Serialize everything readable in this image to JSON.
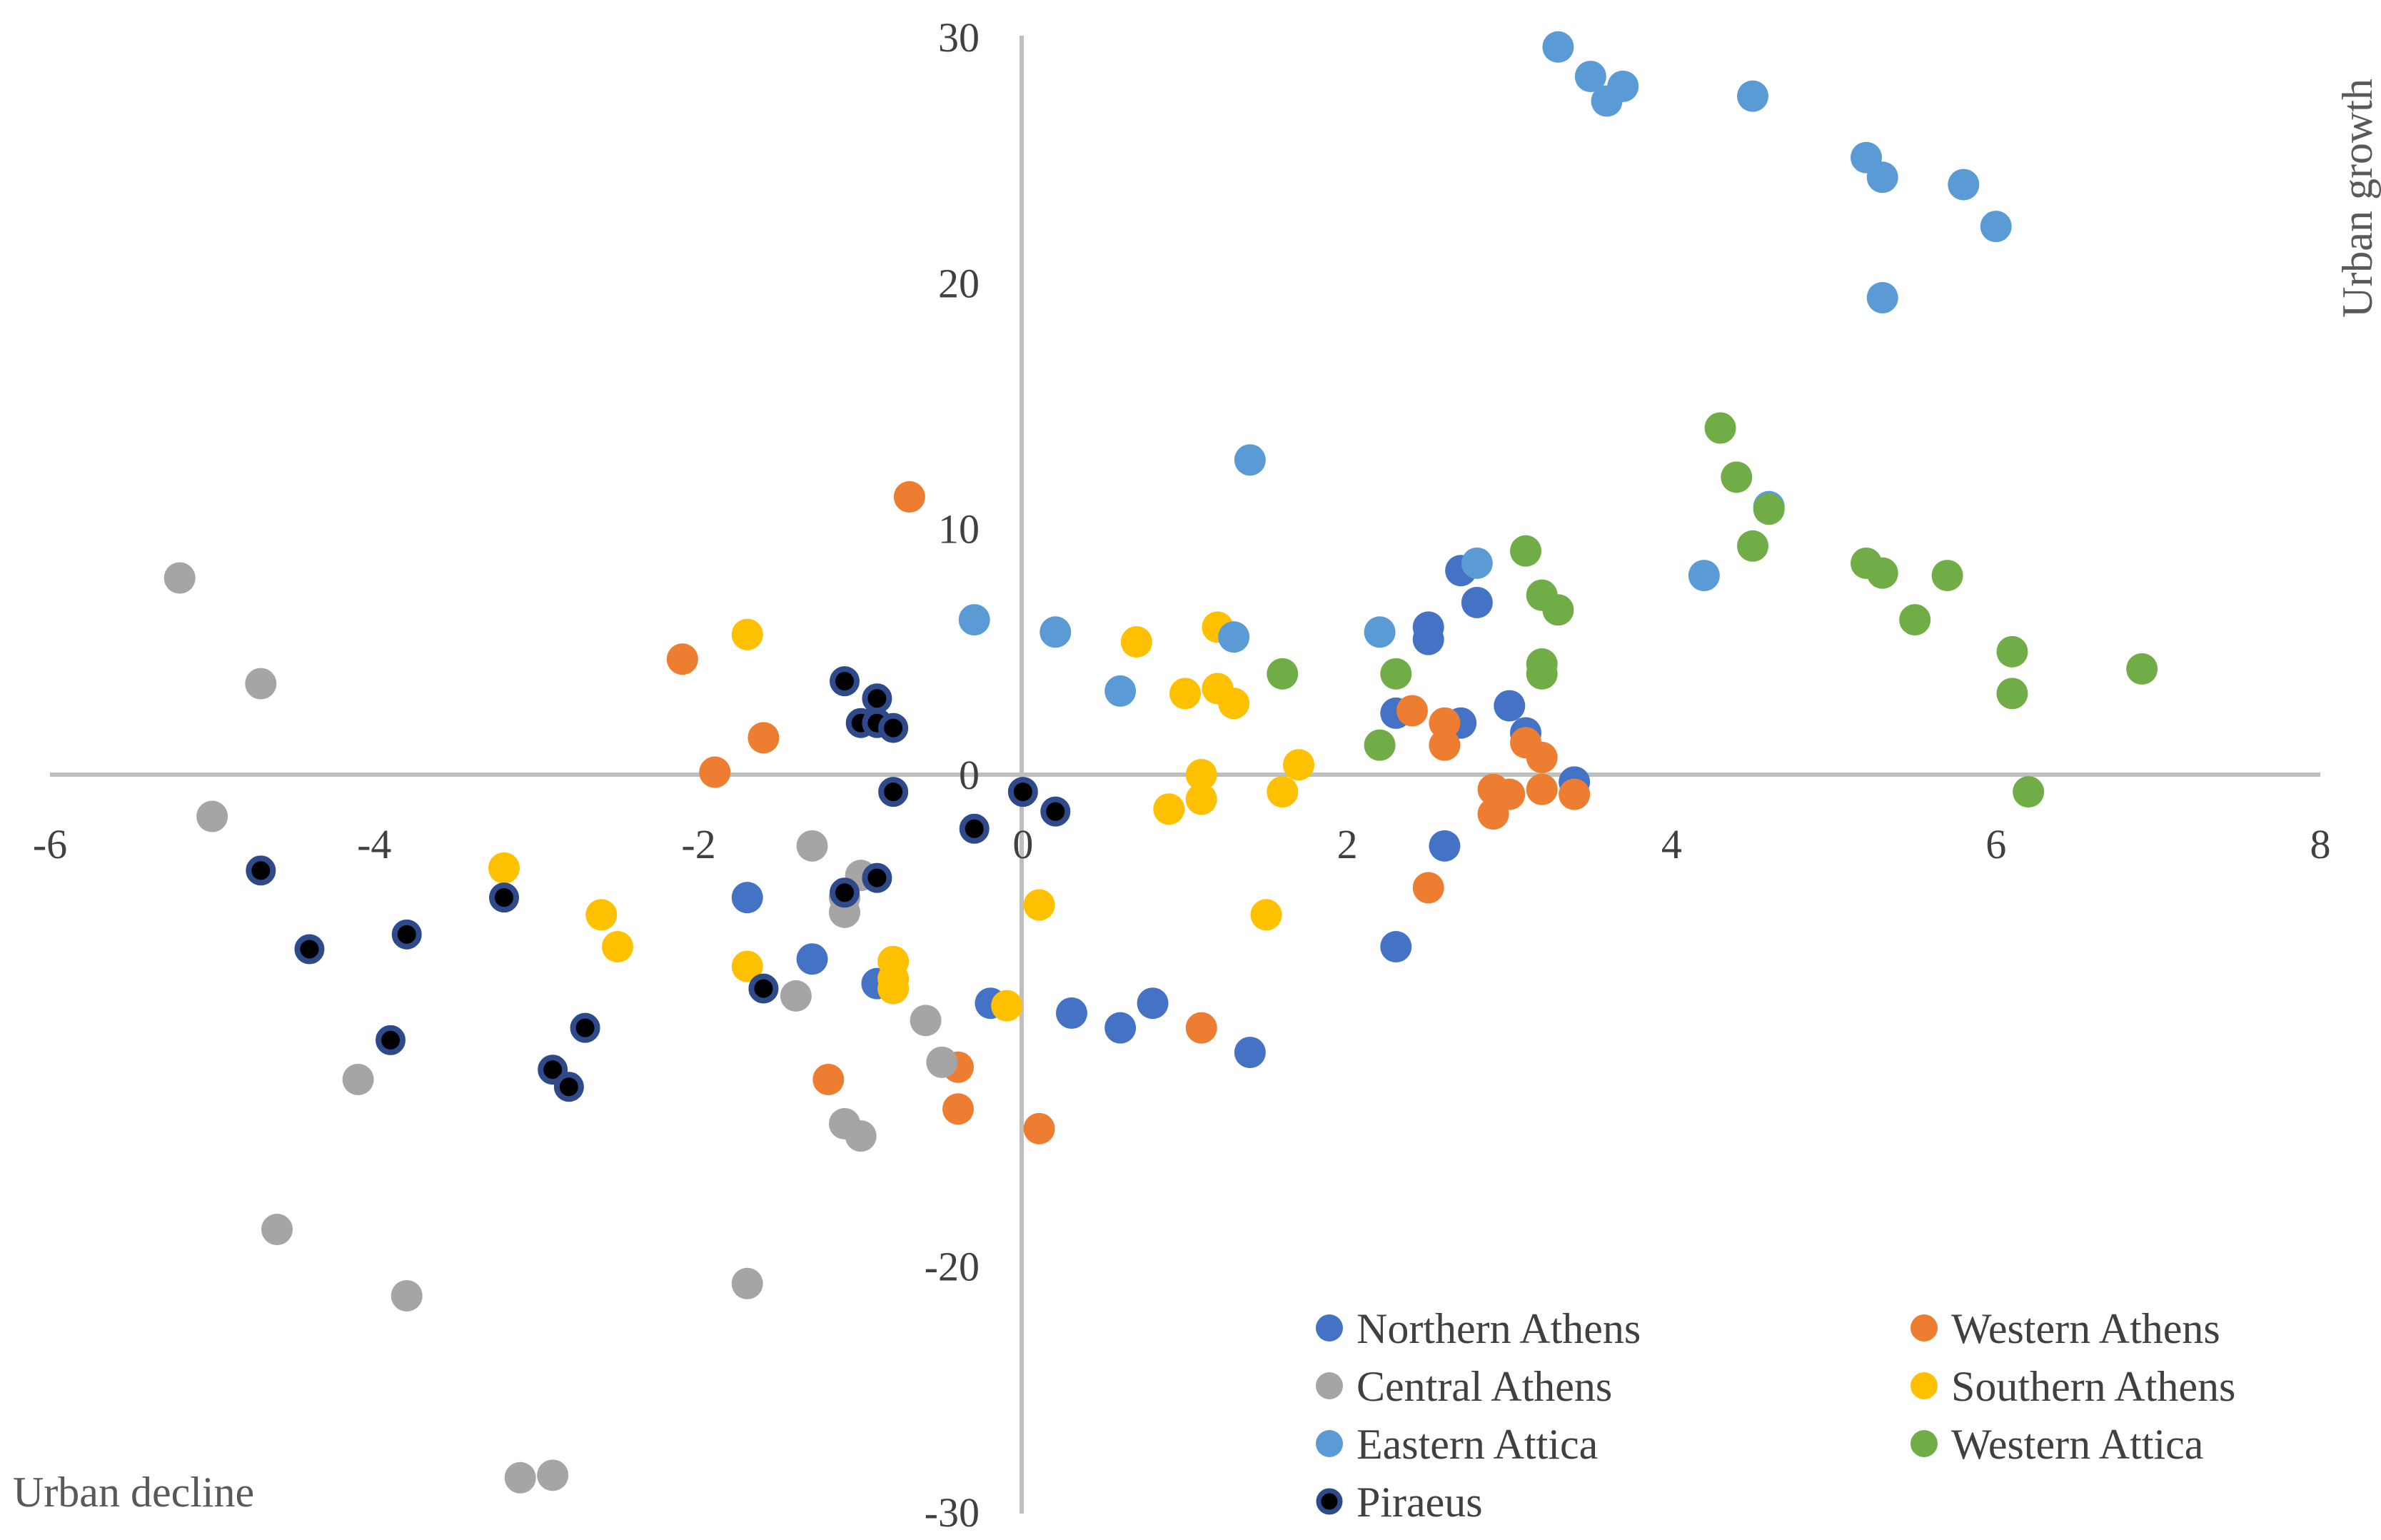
{
  "chart_data": {
    "type": "scatter",
    "title": "",
    "xlabel": "",
    "ylabel": "",
    "xlim": [
      -6,
      8
    ],
    "ylim": [
      -30,
      30
    ],
    "x_ticks": [
      -6,
      -4,
      -2,
      0,
      2,
      4,
      6,
      8
    ],
    "y_ticks": [
      30,
      20,
      10,
      0,
      -20,
      -30
    ],
    "y_tick_labels": [
      "30",
      "20",
      "10",
      "0",
      "-20",
      "-30"
    ],
    "x_tick_labels": [
      "-6",
      "-4",
      "-2",
      "0",
      "2",
      "4",
      "6",
      "8"
    ],
    "quadrant_labels": {
      "top_right": "Urban growth",
      "bottom_left": "Urban decline"
    },
    "legend_position": "bottom-right",
    "series": [
      {
        "name": "Northern Athens",
        "color": "#4472c4",
        "outline": "",
        "points": [
          [
            -1.7,
            -5
          ],
          [
            -1.3,
            -7.5
          ],
          [
            -0.9,
            -8.5
          ],
          [
            -0.2,
            -9.3
          ],
          [
            0.3,
            -9.7
          ],
          [
            0.6,
            -10.3
          ],
          [
            0.8,
            -9.3
          ],
          [
            1.4,
            -11.3
          ],
          [
            2.3,
            2.5
          ],
          [
            2.3,
            -7
          ],
          [
            2.5,
            6
          ],
          [
            2.5,
            5.5
          ],
          [
            2.6,
            -2.9
          ],
          [
            2.7,
            8.3
          ],
          [
            2.7,
            2.1
          ],
          [
            2.8,
            7
          ],
          [
            3,
            2.8
          ],
          [
            3.1,
            1.7
          ],
          [
            3.4,
            -0.3
          ]
        ]
      },
      {
        "name": "Western Athens",
        "color": "#ed7d31",
        "outline": "",
        "points": [
          [
            -2.1,
            4.7
          ],
          [
            -1.9,
            0.1
          ],
          [
            -1.6,
            1.5
          ],
          [
            -1.2,
            -12.4
          ],
          [
            -0.7,
            11.3
          ],
          [
            -0.4,
            -11.9
          ],
          [
            -0.4,
            -13.6
          ],
          [
            0.1,
            -14.4
          ],
          [
            1.1,
            -10.3
          ],
          [
            2.4,
            2.6
          ],
          [
            2.5,
            -4.6
          ],
          [
            2.6,
            2.1
          ],
          [
            2.6,
            1.2
          ],
          [
            2.9,
            -0.6
          ],
          [
            2.9,
            -1.6
          ],
          [
            3,
            -0.8
          ],
          [
            3.1,
            1.3
          ],
          [
            3.2,
            0.7
          ],
          [
            3.2,
            -0.6
          ],
          [
            3.4,
            -0.8
          ]
        ]
      },
      {
        "name": "Central Athens",
        "color": "#a5a5a5",
        "outline": "",
        "points": [
          [
            -5.2,
            8
          ],
          [
            -5,
            -1.7
          ],
          [
            -4.7,
            3.7
          ],
          [
            -4.6,
            -18.5
          ],
          [
            -4.1,
            -12.4
          ],
          [
            -3.8,
            -21.2
          ],
          [
            -3.1,
            -28.6
          ],
          [
            -2.9,
            -28.5
          ],
          [
            -1.7,
            -20.7
          ],
          [
            -1.4,
            -9
          ],
          [
            -1.3,
            -2.9
          ],
          [
            -1.1,
            -14.2
          ],
          [
            -1.1,
            -5.6
          ],
          [
            -1.1,
            -5
          ],
          [
            -1,
            -14.7
          ],
          [
            -1,
            -4.1
          ],
          [
            -0.6,
            -10
          ],
          [
            -0.5,
            -11.7
          ]
        ]
      },
      {
        "name": "Southern Athens",
        "color": "#ffc000",
        "outline": "",
        "points": [
          [
            -3.2,
            -3.8
          ],
          [
            -2.6,
            -5.7
          ],
          [
            -2.5,
            -7
          ],
          [
            -1.7,
            5.7
          ],
          [
            -1.7,
            -7.8
          ],
          [
            -0.8,
            -7.6
          ],
          [
            -0.8,
            -8.3
          ],
          [
            -0.8,
            -8.7
          ],
          [
            -0.1,
            -9.4
          ],
          [
            0.1,
            -5.3
          ],
          [
            0.7,
            5.4
          ],
          [
            0.9,
            -1.4
          ],
          [
            1,
            3.3
          ],
          [
            1.1,
            0
          ],
          [
            1.1,
            -1
          ],
          [
            1.2,
            6
          ],
          [
            1.2,
            3.5
          ],
          [
            1.3,
            2.9
          ],
          [
            1.5,
            -5.7
          ],
          [
            1.6,
            -0.7
          ],
          [
            1.7,
            0.4
          ]
        ]
      },
      {
        "name": "Eastern Attica",
        "color": "#5b9bd5",
        "outline": "",
        "points": [
          [
            -0.3,
            6.3
          ],
          [
            0.2,
            5.8
          ],
          [
            0.6,
            3.4
          ],
          [
            1.3,
            5.6
          ],
          [
            1.4,
            12.8
          ],
          [
            2.2,
            5.8
          ],
          [
            2.8,
            8.6
          ],
          [
            3.3,
            29.6
          ],
          [
            3.5,
            28.4
          ],
          [
            3.6,
            27.4
          ],
          [
            3.7,
            28
          ],
          [
            4.2,
            8.1
          ],
          [
            4.5,
            27.6
          ],
          [
            4.6,
            10.9
          ],
          [
            5.2,
            25.1
          ],
          [
            5.3,
            24.3
          ],
          [
            5.3,
            19.4
          ],
          [
            5.8,
            24
          ],
          [
            6,
            22.3
          ]
        ]
      },
      {
        "name": "Western Attica",
        "color": "#70ad47",
        "outline": "",
        "points": [
          [
            1.6,
            4.1
          ],
          [
            2.2,
            1.2
          ],
          [
            2.3,
            4.1
          ],
          [
            3.1,
            9.1
          ],
          [
            3.2,
            7.3
          ],
          [
            3.2,
            4.5
          ],
          [
            3.2,
            4.1
          ],
          [
            3.3,
            6.7
          ],
          [
            4.3,
            14.1
          ],
          [
            4.4,
            12.1
          ],
          [
            4.5,
            9.3
          ],
          [
            4.6,
            10.8
          ],
          [
            5.2,
            8.6
          ],
          [
            5.3,
            8.2
          ],
          [
            5.5,
            6.3
          ],
          [
            5.7,
            8.1
          ],
          [
            6.1,
            5
          ],
          [
            6.1,
            3.3
          ],
          [
            6.2,
            -0.7
          ],
          [
            6.9,
            4.3
          ]
        ]
      },
      {
        "name": "Piraeus",
        "color": "#000000",
        "outline": "#2e4a8b",
        "points": [
          [
            -4.7,
            -3.9
          ],
          [
            -4.4,
            -7.1
          ],
          [
            -3.9,
            -10.8
          ],
          [
            -3.8,
            -6.5
          ],
          [
            -3.2,
            -5
          ],
          [
            -2.9,
            -12
          ],
          [
            -2.8,
            -12.7
          ],
          [
            -2.7,
            -10.3
          ],
          [
            -1.6,
            -8.7
          ],
          [
            -1.1,
            3.8
          ],
          [
            -1.1,
            -4.8
          ],
          [
            -1,
            2.1
          ],
          [
            -0.9,
            3.1
          ],
          [
            -0.9,
            2.1
          ],
          [
            -0.9,
            -4.2
          ],
          [
            -0.8,
            1.9
          ],
          [
            -0.8,
            -0.7
          ],
          [
            -0.3,
            -2.2
          ],
          [
            0,
            -0.7
          ],
          [
            0.2,
            -1.5
          ]
        ]
      }
    ]
  }
}
